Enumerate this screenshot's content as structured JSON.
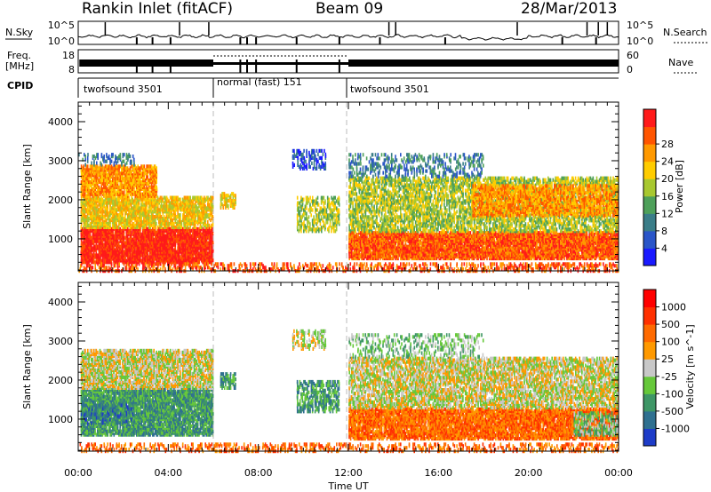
{
  "header": {
    "station": "Rankin Inlet (fitACF)",
    "beam": "Beam 09",
    "date": "28/Mar/2013"
  },
  "panels": {
    "nsky_label": "N.Sky",
    "nsky_ticks": [
      "10^5",
      "10^0"
    ],
    "nsearch_label": "N.Search",
    "nsearch_ticks": [
      "10^5",
      "10^0"
    ],
    "freq_label_1": "Freq.",
    "freq_label_2": "[MHz]",
    "freq_ticks": [
      "18",
      "8"
    ],
    "nave_label": "Nave",
    "nave_ticks": [
      "60",
      "0"
    ],
    "cpid_label": "CPID",
    "cpid_segments": [
      {
        "label": "twofsound 3501",
        "start": 0,
        "end": 6
      },
      {
        "label": "normal (fast) 151",
        "start": 6,
        "end": 12
      },
      {
        "label": "twofsound 3501",
        "start": 12,
        "end": 24
      }
    ]
  },
  "chart_data": [
    {
      "type": "heatmap",
      "title": "",
      "xlabel": "Time UT",
      "ylabel": "Slant Range [km]",
      "x_ticks": [
        "00:00",
        "04:00",
        "08:00",
        "12:00",
        "16:00",
        "20:00",
        "00:00"
      ],
      "x_range_hours": [
        0,
        24
      ],
      "y_ticks": [
        1000,
        2000,
        3000,
        4000
      ],
      "ylim": [
        180,
        4500
      ],
      "colorbar": {
        "label": "Power [dB]",
        "ticks": [
          "4",
          "8",
          "12",
          "16",
          "20",
          "24",
          "28"
        ],
        "colors": [
          "#1a1aff",
          "#2a55c8",
          "#3a7d88",
          "#4ea05a",
          "#a8c830",
          "#ffcc00",
          "#ff9900",
          "#ff5500",
          "#ff1a1a"
        ]
      },
      "regions": [
        {
          "t0": 0.1,
          "t1": 6.0,
          "r0": 400,
          "r1": 1300,
          "level": 8,
          "density": 0.85
        },
        {
          "t0": 0.1,
          "t1": 6.0,
          "r0": 1300,
          "r1": 2100,
          "level": 5,
          "density": 0.7
        },
        {
          "t0": 0.1,
          "t1": 3.5,
          "r0": 2100,
          "r1": 2900,
          "level": 6,
          "density": 0.7
        },
        {
          "t0": 0.0,
          "t1": 2.5,
          "r0": 2900,
          "r1": 3200,
          "level": 2,
          "density": 0.25
        },
        {
          "t0": 6.3,
          "t1": 7.0,
          "r0": 1800,
          "r1": 2200,
          "level": 5,
          "density": 0.5
        },
        {
          "t0": 9.7,
          "t1": 11.6,
          "r0": 1200,
          "r1": 2100,
          "level": 4,
          "density": 0.45
        },
        {
          "t0": 9.5,
          "t1": 11.0,
          "r0": 2800,
          "r1": 3300,
          "level": 1,
          "density": 0.35
        },
        {
          "t0": 12.0,
          "t1": 24.0,
          "r0": 500,
          "r1": 1200,
          "level": 7,
          "density": 0.85
        },
        {
          "t0": 12.0,
          "t1": 24.0,
          "r0": 1200,
          "r1": 2600,
          "level": 4,
          "density": 0.55
        },
        {
          "t0": 12.0,
          "t1": 18.0,
          "r0": 2600,
          "r1": 3200,
          "level": 2,
          "density": 0.3
        },
        {
          "t0": 17.5,
          "t1": 24.0,
          "r0": 1600,
          "r1": 2400,
          "level": 6,
          "density": 0.6
        },
        {
          "t0": 0.0,
          "t1": 24.0,
          "r0": 180,
          "r1": 400,
          "level": 7,
          "density": 0.35
        }
      ]
    },
    {
      "type": "heatmap",
      "title": "",
      "xlabel": "Time UT",
      "ylabel": "Slant Range [km]",
      "x_ticks": [
        "00:00",
        "04:00",
        "08:00",
        "12:00",
        "16:00",
        "20:00",
        "00:00"
      ],
      "x_range_hours": [
        0,
        24
      ],
      "y_ticks": [
        1000,
        2000,
        3000,
        4000
      ],
      "ylim": [
        180,
        4500
      ],
      "colorbar": {
        "label": "Velocity [m s^-1]",
        "ticks": [
          "1000",
          "500",
          "100",
          "25",
          "-25",
          "-100",
          "-500",
          "-1000"
        ],
        "colors": [
          "#1e3cc8",
          "#2f7090",
          "#3e9666",
          "#66c83a",
          "#c8c8c8",
          "#ff9900",
          "#ff6a00",
          "#ff3000",
          "#ff0000"
        ]
      },
      "regions": [
        {
          "t0": 0.1,
          "t1": 6.0,
          "r0": 600,
          "r1": 1800,
          "level": 2,
          "density": 0.8
        },
        {
          "t0": 0.1,
          "t1": 6.0,
          "r0": 1800,
          "r1": 2800,
          "level": 4,
          "density": 0.7
        },
        {
          "t0": 0.1,
          "t1": 2.5,
          "r0": 900,
          "r1": 1400,
          "level": 1,
          "density": 0.3
        },
        {
          "t0": 6.3,
          "t1": 7.0,
          "r0": 1800,
          "r1": 2200,
          "level": 2,
          "density": 0.5
        },
        {
          "t0": 9.7,
          "t1": 11.6,
          "r0": 1200,
          "r1": 2000,
          "level": 2,
          "density": 0.45
        },
        {
          "t0": 9.5,
          "t1": 11.0,
          "r0": 2800,
          "r1": 3300,
          "level": 4,
          "density": 0.35
        },
        {
          "t0": 12.0,
          "t1": 24.0,
          "r0": 500,
          "r1": 1300,
          "level": 6,
          "density": 0.8
        },
        {
          "t0": 12.0,
          "t1": 24.0,
          "r0": 1300,
          "r1": 2600,
          "level": 4,
          "density": 0.6
        },
        {
          "t0": 12.0,
          "t1": 18.0,
          "r0": 2600,
          "r1": 3200,
          "level": 3,
          "density": 0.25
        },
        {
          "t0": 22.0,
          "t1": 24.0,
          "r0": 600,
          "r1": 1200,
          "level": 3,
          "density": 0.5
        },
        {
          "t0": 0.0,
          "t1": 24.0,
          "r0": 180,
          "r1": 400,
          "level": 6,
          "density": 0.3
        }
      ]
    }
  ]
}
